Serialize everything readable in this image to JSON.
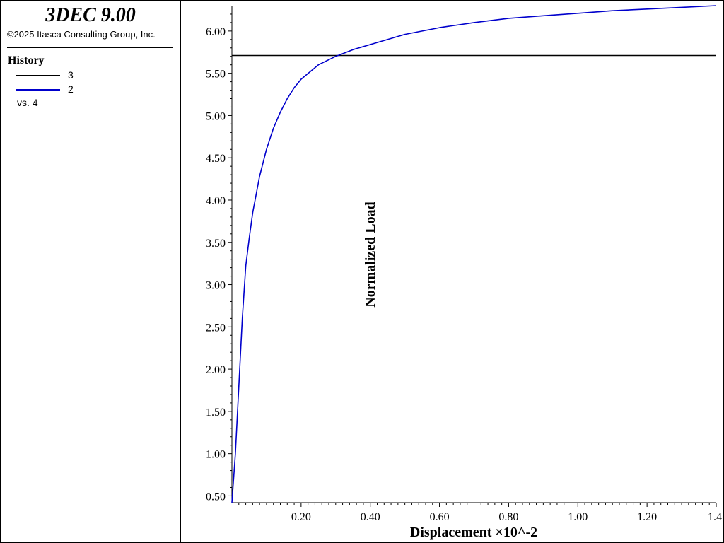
{
  "app": {
    "title": "3DEC 9.00",
    "copyright": "©2025 Itasca Consulting Group, Inc."
  },
  "legend": {
    "title": "History",
    "items": [
      {
        "label": "3",
        "color": "#000000"
      },
      {
        "label": "2",
        "color": "#0000cc"
      }
    ],
    "vs_label": "vs. 4"
  },
  "chart_data": {
    "type": "line",
    "xlabel": "Displacement ×10^-2",
    "ylabel": "Normalized Load",
    "xlim": [
      0.0,
      1.4
    ],
    "ylim": [
      0.42,
      6.3
    ],
    "x_ticks": [
      "0.20",
      "0.40",
      "0.60",
      "0.80",
      "1.00",
      "1.20",
      "1.4"
    ],
    "y_ticks": [
      "0.50",
      "1.00",
      "1.50",
      "2.00",
      "2.50",
      "3.00",
      "3.50",
      "4.00",
      "4.50",
      "5.00",
      "5.50",
      "6.00"
    ],
    "grid": false,
    "series": [
      {
        "name": "3",
        "color": "#000000",
        "x": [
          0.0,
          1.4
        ],
        "y": [
          5.71,
          5.71
        ]
      },
      {
        "name": "2",
        "color": "#0000cc",
        "x": [
          0.0,
          0.01,
          0.02,
          0.03,
          0.04,
          0.05,
          0.06,
          0.08,
          0.1,
          0.12,
          0.14,
          0.16,
          0.18,
          0.2,
          0.25,
          0.3,
          0.35,
          0.4,
          0.5,
          0.6,
          0.7,
          0.8,
          0.9,
          1.0,
          1.1,
          1.2,
          1.3,
          1.4
        ],
        "y": [
          0.42,
          1.0,
          1.8,
          2.6,
          3.22,
          3.55,
          3.85,
          4.28,
          4.6,
          4.85,
          5.04,
          5.2,
          5.33,
          5.43,
          5.6,
          5.7,
          5.78,
          5.84,
          5.96,
          6.04,
          6.1,
          6.15,
          6.18,
          6.21,
          6.24,
          6.26,
          6.28,
          6.3
        ]
      }
    ]
  }
}
